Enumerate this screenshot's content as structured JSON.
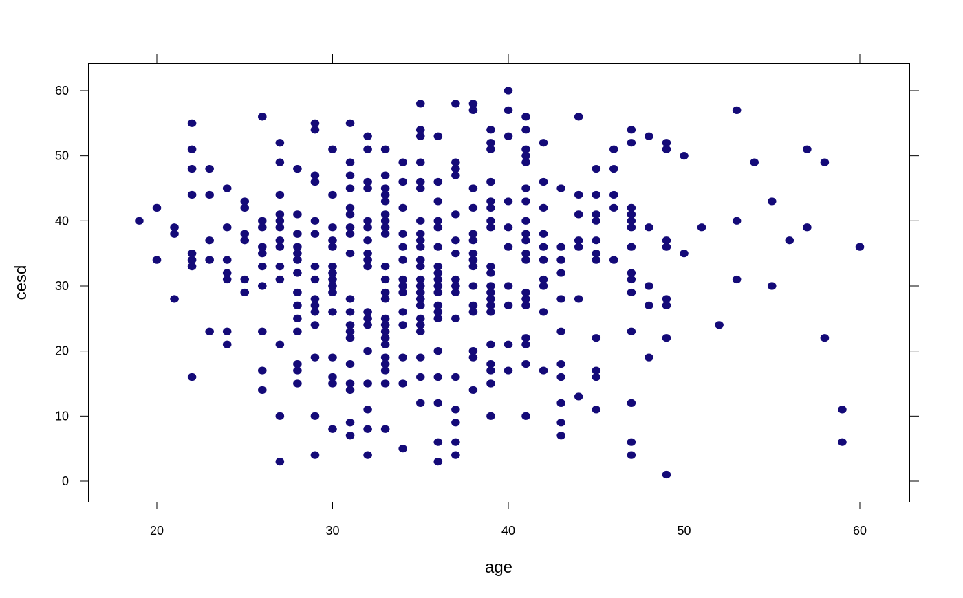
{
  "chart_data": {
    "type": "scatter",
    "title": "",
    "xlabel": "age",
    "ylabel": "cesd",
    "xlim": [
      16,
      63
    ],
    "ylim": [
      -3,
      64
    ],
    "x_ticks": [
      20,
      30,
      40,
      50,
      60
    ],
    "y_ticks": [
      0,
      10,
      20,
      30,
      40,
      50,
      60
    ],
    "grid": false,
    "point_color": "#140a78",
    "columns": [
      {
        "x": 19,
        "y": [
          40
        ]
      },
      {
        "x": 20,
        "y": [
          42,
          34
        ]
      },
      {
        "x": 21,
        "y": [
          39,
          38,
          28
        ]
      },
      {
        "x": 22,
        "y": [
          55,
          51,
          48,
          44,
          35,
          34,
          33,
          16
        ]
      },
      {
        "x": 23,
        "y": [
          48,
          44,
          37,
          34,
          23
        ]
      },
      {
        "x": 24,
        "y": [
          45,
          39,
          34,
          32,
          31,
          23,
          21
        ]
      },
      {
        "x": 25,
        "y": [
          43,
          42,
          38,
          37,
          31,
          29
        ]
      },
      {
        "x": 26,
        "y": [
          56,
          40,
          39,
          36,
          35,
          33,
          30,
          23,
          17,
          14
        ]
      },
      {
        "x": 27,
        "y": [
          52,
          49,
          44,
          41,
          40,
          39,
          37,
          36,
          33,
          31,
          21,
          10,
          3
        ]
      },
      {
        "x": 28,
        "y": [
          48,
          41,
          38,
          36,
          35,
          34,
          32,
          29,
          27,
          25,
          23,
          18,
          17,
          15
        ]
      },
      {
        "x": 29,
        "y": [
          55,
          54,
          47,
          46,
          40,
          38,
          33,
          31,
          28,
          27,
          26,
          24,
          19,
          10,
          4
        ]
      },
      {
        "x": 30,
        "y": [
          51,
          44,
          39,
          37,
          36,
          33,
          32,
          31,
          30,
          29,
          26,
          19,
          16,
          15,
          8
        ]
      },
      {
        "x": 31,
        "y": [
          55,
          49,
          47,
          45,
          42,
          41,
          39,
          38,
          35,
          28,
          26,
          24,
          23,
          22,
          18,
          15,
          14,
          9,
          7
        ]
      },
      {
        "x": 32,
        "y": [
          53,
          51,
          46,
          45,
          40,
          39,
          37,
          35,
          34,
          33,
          26,
          25,
          24,
          20,
          15,
          11,
          8,
          4
        ]
      },
      {
        "x": 33,
        "y": [
          51,
          47,
          45,
          44,
          43,
          41,
          40,
          39,
          38,
          33,
          31,
          29,
          28,
          25,
          24,
          23,
          22,
          21,
          19,
          18,
          17,
          15,
          8
        ]
      },
      {
        "x": 34,
        "y": [
          49,
          46,
          42,
          38,
          36,
          34,
          31,
          30,
          29,
          26,
          24,
          19,
          15,
          5
        ]
      },
      {
        "x": 35,
        "y": [
          58,
          54,
          53,
          49,
          46,
          45,
          40,
          38,
          37,
          36,
          34,
          33,
          31,
          30,
          29,
          28,
          27,
          25,
          24,
          23,
          19,
          16,
          12
        ]
      },
      {
        "x": 36,
        "y": [
          53,
          46,
          43,
          40,
          39,
          36,
          33,
          32,
          31,
          30,
          29,
          27,
          26,
          25,
          20,
          16,
          12,
          6,
          3
        ]
      },
      {
        "x": 37,
        "y": [
          58,
          49,
          48,
          47,
          41,
          37,
          35,
          31,
          30,
          29,
          25,
          16,
          11,
          9,
          6,
          4
        ]
      },
      {
        "x": 38,
        "y": [
          58,
          57,
          45,
          42,
          38,
          37,
          35,
          34,
          33,
          30,
          27,
          26,
          20,
          19,
          14
        ]
      },
      {
        "x": 39,
        "y": [
          54,
          52,
          51,
          46,
          43,
          42,
          40,
          39,
          33,
          32,
          30,
          29,
          28,
          27,
          26,
          21,
          18,
          17,
          15,
          10
        ]
      },
      {
        "x": 40,
        "y": [
          60,
          57,
          53,
          43,
          39,
          36,
          30,
          27,
          21,
          17
        ]
      },
      {
        "x": 41,
        "y": [
          56,
          54,
          51,
          50,
          49,
          45,
          43,
          40,
          38,
          37,
          35,
          34,
          29,
          28,
          27,
          22,
          21,
          18,
          10
        ]
      },
      {
        "x": 42,
        "y": [
          52,
          46,
          42,
          38,
          36,
          34,
          31,
          30,
          26,
          17
        ]
      },
      {
        "x": 43,
        "y": [
          45,
          36,
          34,
          32,
          28,
          23,
          18,
          16,
          12,
          9,
          7
        ]
      },
      {
        "x": 44,
        "y": [
          56,
          44,
          41,
          37,
          36,
          28,
          13
        ]
      },
      {
        "x": 45,
        "y": [
          48,
          44,
          41,
          40,
          37,
          35,
          34,
          22,
          17,
          16,
          11
        ]
      },
      {
        "x": 46,
        "y": [
          51,
          48,
          44,
          42,
          34
        ]
      },
      {
        "x": 47,
        "y": [
          54,
          52,
          42,
          41,
          40,
          39,
          36,
          32,
          31,
          29,
          23,
          12,
          6,
          4
        ]
      },
      {
        "x": 48,
        "y": [
          53,
          39,
          30,
          27,
          19
        ]
      },
      {
        "x": 49,
        "y": [
          52,
          51,
          37,
          36,
          28,
          27,
          22,
          1
        ]
      },
      {
        "x": 50,
        "y": [
          50,
          35
        ]
      },
      {
        "x": 51,
        "y": [
          39
        ]
      },
      {
        "x": 52,
        "y": [
          24
        ]
      },
      {
        "x": 53,
        "y": [
          57,
          40,
          31
        ]
      },
      {
        "x": 54,
        "y": [
          49
        ]
      },
      {
        "x": 55,
        "y": [
          43,
          30
        ]
      },
      {
        "x": 56,
        "y": [
          37
        ]
      },
      {
        "x": 57,
        "y": [
          51,
          39
        ]
      },
      {
        "x": 58,
        "y": [
          49,
          22
        ]
      },
      {
        "x": 59,
        "y": [
          11,
          6
        ]
      },
      {
        "x": 60,
        "y": [
          36
        ]
      }
    ]
  }
}
